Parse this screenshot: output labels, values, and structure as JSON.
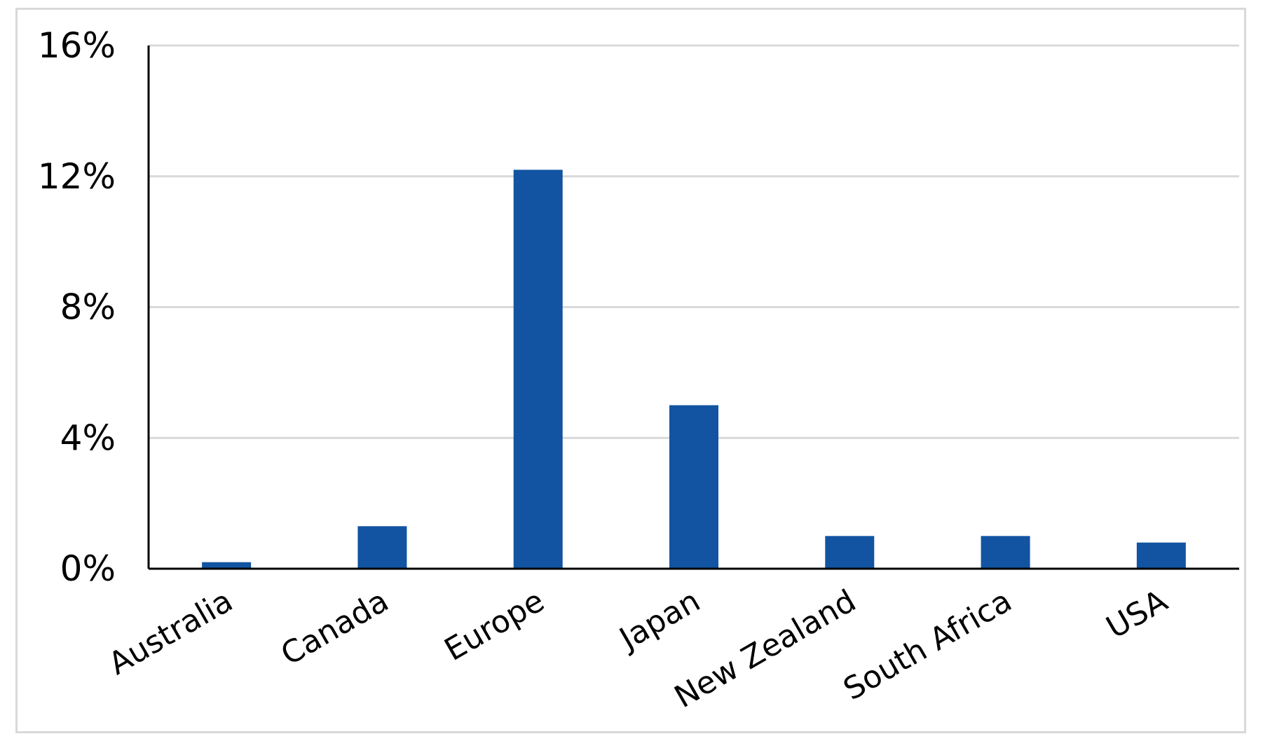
{
  "chart_data": {
    "type": "bar",
    "title": "",
    "xlabel": "",
    "ylabel": "",
    "categories": [
      "Australia",
      "Canada",
      "Europe",
      "Japan",
      "New Zealand",
      "South Africa",
      "USA"
    ],
    "values": [
      0.2,
      1.3,
      12.2,
      5.0,
      1.0,
      1.0,
      0.8
    ],
    "ylim": [
      0,
      16
    ],
    "yticks": [
      0,
      4,
      8,
      12,
      16
    ],
    "ytick_labels": [
      "0%",
      "4%",
      "8%",
      "12%",
      "16%"
    ],
    "grid": true,
    "legend": "none",
    "bar_color": "#1254a2",
    "grid_color": "#d9d9d9",
    "axis_color": "#000000"
  }
}
